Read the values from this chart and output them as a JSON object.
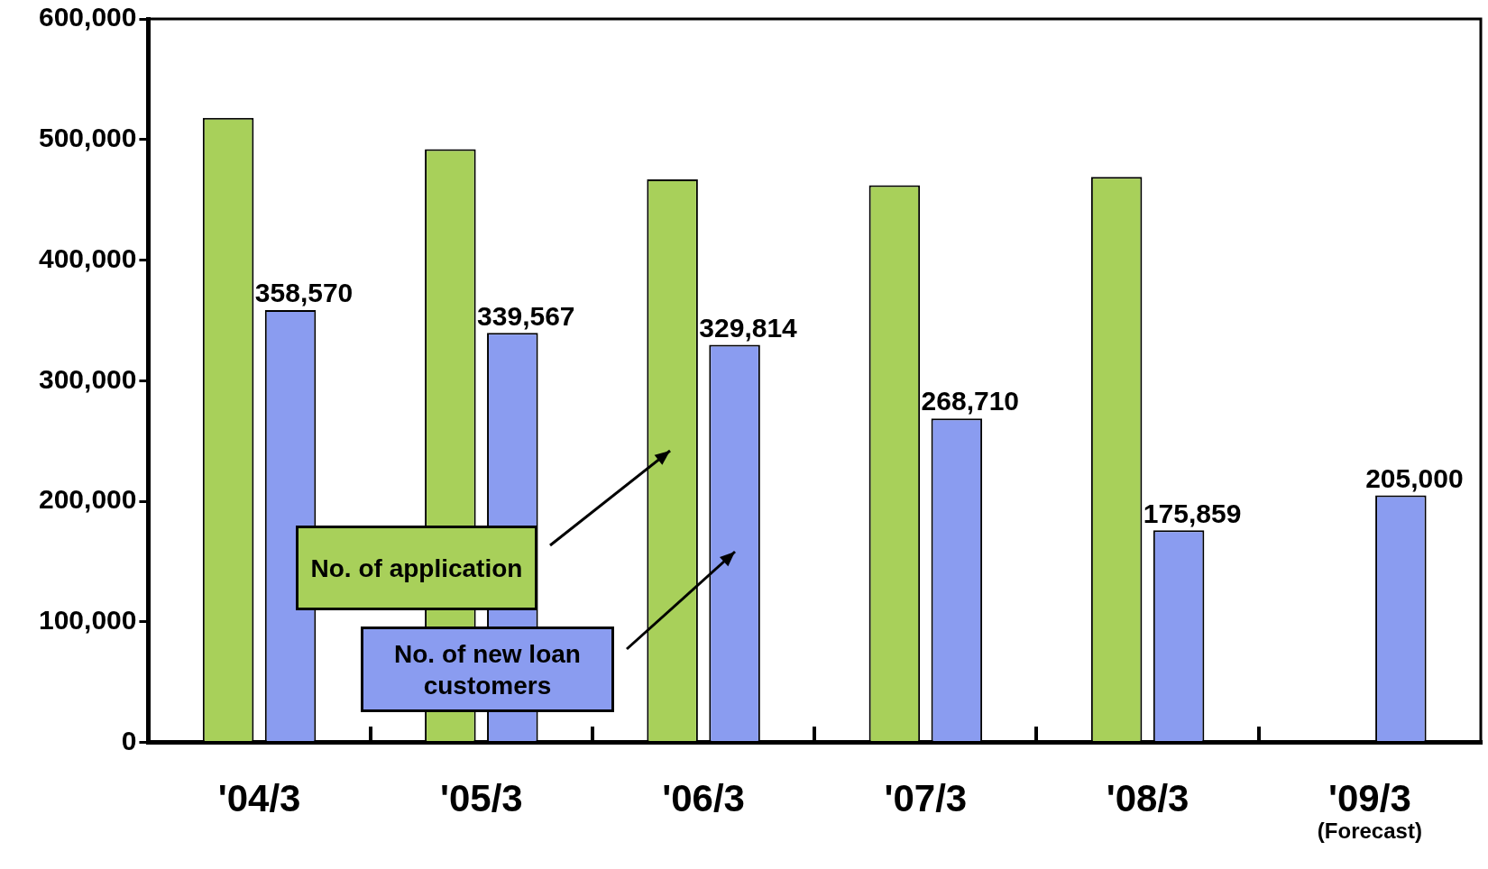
{
  "chart_data": {
    "type": "bar",
    "categories": [
      "'04/3",
      "'05/3",
      "'06/3",
      "'07/3",
      "'08/3",
      "'09/3"
    ],
    "series": [
      {
        "name": "No. of application",
        "color": "#a8d05a",
        "values": [
          518000,
          492000,
          467000,
          462000,
          469000,
          null
        ]
      },
      {
        "name": "No. of new loan customers",
        "color": "#8a9cf0",
        "values": [
          358570,
          339567,
          329814,
          268710,
          175859,
          205000
        ],
        "value_labels": [
          "358,570",
          "339,567",
          "329,814",
          "268,710",
          "175,859",
          "205,000"
        ]
      }
    ],
    "ylim": [
      0,
      600000
    ],
    "yticks": [
      {
        "value": 0,
        "label": "0"
      },
      {
        "value": 100000,
        "label": "100,000"
      },
      {
        "value": 200000,
        "label": "200,000"
      },
      {
        "value": 300000,
        "label": "300,000"
      },
      {
        "value": 400000,
        "label": "400,000"
      },
      {
        "value": 500000,
        "label": "500,000"
      },
      {
        "value": 600000,
        "label": "600,000"
      }
    ],
    "grid": false,
    "legend": "bottom left",
    "annotations": [
      "(Forecast)"
    ]
  }
}
